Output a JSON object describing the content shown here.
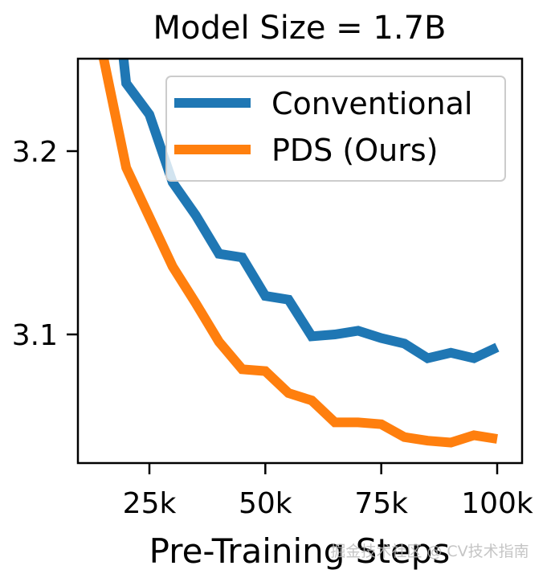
{
  "chart_data": {
    "type": "line",
    "title": "Model Size = 1.7B",
    "xlabel": "Pre-Training Steps",
    "ylabel": "",
    "xlim": [
      10000,
      105000
    ],
    "ylim": [
      3.045,
      3.25
    ],
    "xticks": [
      25000,
      50000,
      75000,
      100000
    ],
    "xtick_labels": [
      "25k",
      "50k",
      "75k",
      "100k"
    ],
    "yticks": [
      3.1,
      3.2
    ],
    "ytick_labels": [
      "3.1",
      "3.2"
    ],
    "grid": false,
    "legend_position": "top-right",
    "series": [
      {
        "name": "Conventional",
        "color": "#1f77b4",
        "x": [
          19000,
          20000,
          25000,
          30000,
          35000,
          40000,
          45000,
          50000,
          55000,
          60000,
          65000,
          70000,
          75000,
          80000,
          85000,
          90000,
          95000,
          100000
        ],
        "y": [
          3.26,
          3.237,
          3.22,
          3.183,
          3.165,
          3.144,
          3.142,
          3.121,
          3.119,
          3.099,
          3.1,
          3.102,
          3.098,
          3.095,
          3.087,
          3.09,
          3.087,
          3.093
        ]
      },
      {
        "name": "PDS (Ours)",
        "color": "#ff7f0e",
        "x": [
          14000,
          15000,
          20000,
          25000,
          30000,
          35000,
          40000,
          45000,
          50000,
          55000,
          60000,
          65000,
          70000,
          75000,
          80000,
          85000,
          90000,
          95000,
          100000
        ],
        "y": [
          3.26,
          3.252,
          3.191,
          3.164,
          3.137,
          3.117,
          3.096,
          3.081,
          3.08,
          3.068,
          3.064,
          3.052,
          3.052,
          3.051,
          3.044,
          3.042,
          3.041,
          3.045,
          3.043
        ]
      }
    ]
  },
  "watermark": "掘金技术社区 @ CV技术指南"
}
